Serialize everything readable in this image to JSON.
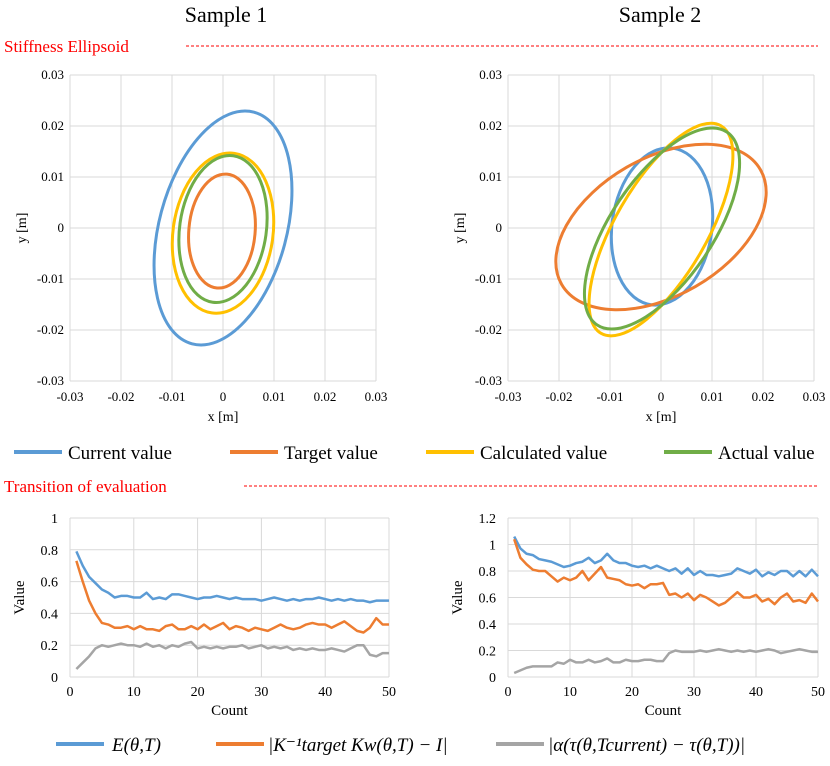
{
  "headers": {
    "sample1": "Sample 1",
    "sample2": "Sample 2"
  },
  "sections": {
    "ellipsoid": "Stiffness Ellipsoid",
    "transition": "Transition of evaluation"
  },
  "colors": {
    "blue": "#5b9bd5",
    "orange": "#ed7d31",
    "yellow": "#ffc000",
    "green": "#70ad47",
    "gray": "#a5a5a5",
    "red": "#ff0000",
    "grid": "#d9d9d9"
  },
  "legend_ellipse": [
    {
      "label": "Current value",
      "color": "#5b9bd5"
    },
    {
      "label": "Target value",
      "color": "#ed7d31"
    },
    {
      "label": "Calculated value",
      "color": "#ffc000"
    },
    {
      "label": "Actual value",
      "color": "#70ad47"
    }
  ],
  "legend_eval": [
    {
      "label": "E(θ,T)",
      "color": "#5b9bd5"
    },
    {
      "label": "|K⁻¹target Kw(θ,T) − I|",
      "color": "#ed7d31"
    },
    {
      "label": "|α(τ(θ,Tcurrent) − τ(θ,T))|",
      "color": "#a5a5a5"
    }
  ],
  "chart_data": [
    {
      "id": "ellipse1",
      "type": "scatter",
      "title": "Sample 1",
      "xlabel": "x [m]",
      "ylabel": "y [m]",
      "xlim": [
        -0.03,
        0.03
      ],
      "ylim": [
        -0.03,
        0.03
      ],
      "ticks": [
        -0.03,
        -0.02,
        -0.01,
        0,
        0.01,
        0.02,
        0.03
      ],
      "tick_labels": [
        "-0.03",
        "-0.02",
        "-0.01",
        "0",
        "0.01",
        "0.02",
        "0.03"
      ],
      "series": [
        {
          "name": "Current value",
          "color": "#5b9bd5",
          "ellipse": {
            "cx": 0.0,
            "cy": 0.0,
            "a": 0.0235,
            "b": 0.0125,
            "angle_deg": 75
          }
        },
        {
          "name": "Calculated value",
          "color": "#ffc000",
          "ellipse": {
            "cx": 0.0,
            "cy": -0.001,
            "a": 0.0158,
            "b": 0.0098,
            "angle_deg": 82
          }
        },
        {
          "name": "Actual value",
          "color": "#70ad47",
          "ellipse": {
            "cx": 0.0,
            "cy": -0.0002,
            "a": 0.0145,
            "b": 0.0085,
            "angle_deg": 82
          }
        },
        {
          "name": "Target value",
          "color": "#ed7d31",
          "ellipse": {
            "cx": -0.0002,
            "cy": -0.0006,
            "a": 0.0112,
            "b": 0.0065,
            "angle_deg": 85
          }
        }
      ]
    },
    {
      "id": "ellipse2",
      "type": "scatter",
      "title": "Sample 2",
      "xlabel": "x [m]",
      "ylabel": "y [m]",
      "xlim": [
        -0.03,
        0.03
      ],
      "ylim": [
        -0.03,
        0.03
      ],
      "ticks": [
        -0.03,
        -0.02,
        -0.01,
        0,
        0.01,
        0.02,
        0.03
      ],
      "tick_labels": [
        "-0.03",
        "-0.02",
        "-0.01",
        "0",
        "0.01",
        "0.02",
        "0.03"
      ],
      "series": [
        {
          "name": "Current value",
          "color": "#5b9bd5",
          "ellipse": {
            "cx": 0.0002,
            "cy": 0.0003,
            "a": 0.0155,
            "b": 0.0098,
            "angle_deg": 82
          }
        },
        {
          "name": "Target value",
          "color": "#ed7d31",
          "ellipse": {
            "cx": 0.0,
            "cy": 0.0002,
            "a": 0.0225,
            "b": 0.0135,
            "angle_deg": 30
          }
        },
        {
          "name": "Calculated value",
          "color": "#ffc000",
          "ellipse": {
            "cx": 0.0,
            "cy": -0.0003,
            "a": 0.0235,
            "b": 0.009,
            "angle_deg": 60
          }
        },
        {
          "name": "Actual value",
          "color": "#70ad47",
          "ellipse": {
            "cx": 0.0002,
            "cy": -0.0001,
            "a": 0.0228,
            "b": 0.01,
            "angle_deg": 56
          }
        }
      ]
    },
    {
      "id": "eval1",
      "type": "line",
      "xlabel": "Count",
      "ylabel": "Value",
      "xlim": [
        0,
        50
      ],
      "ylim": [
        0,
        1
      ],
      "xticks": [
        0,
        10,
        20,
        30,
        40,
        50
      ],
      "xtick_labels": [
        "0",
        "10",
        "20",
        "30",
        "40",
        "50"
      ],
      "yticks": [
        0,
        0.2,
        0.4,
        0.6,
        0.8,
        1
      ],
      "ytick_labels": [
        "0",
        "0.2",
        "0.4",
        "0.6",
        "0.8",
        "1"
      ],
      "x": [
        1,
        2,
        3,
        4,
        5,
        6,
        7,
        8,
        9,
        10,
        11,
        12,
        13,
        14,
        15,
        16,
        17,
        18,
        19,
        20,
        21,
        22,
        23,
        24,
        25,
        26,
        27,
        28,
        29,
        30,
        31,
        32,
        33,
        34,
        35,
        36,
        37,
        38,
        39,
        40,
        41,
        42,
        43,
        44,
        45,
        46,
        47,
        48,
        49,
        50
      ],
      "series": [
        {
          "name": "E(θ,T)",
          "color": "#5b9bd5",
          "values": [
            0.79,
            0.7,
            0.63,
            0.59,
            0.55,
            0.53,
            0.5,
            0.51,
            0.51,
            0.5,
            0.5,
            0.53,
            0.49,
            0.5,
            0.49,
            0.52,
            0.52,
            0.51,
            0.5,
            0.49,
            0.5,
            0.5,
            0.51,
            0.5,
            0.49,
            0.5,
            0.49,
            0.49,
            0.49,
            0.48,
            0.49,
            0.5,
            0.49,
            0.48,
            0.49,
            0.48,
            0.49,
            0.49,
            0.5,
            0.49,
            0.48,
            0.49,
            0.48,
            0.49,
            0.48,
            0.48,
            0.47,
            0.48,
            0.48,
            0.48
          ]
        },
        {
          "name": "|K⁻¹target Kw(θ,T) − I|",
          "color": "#ed7d31",
          "values": [
            0.73,
            0.6,
            0.48,
            0.4,
            0.34,
            0.33,
            0.31,
            0.31,
            0.32,
            0.3,
            0.32,
            0.3,
            0.3,
            0.29,
            0.32,
            0.33,
            0.3,
            0.3,
            0.32,
            0.3,
            0.33,
            0.3,
            0.32,
            0.34,
            0.3,
            0.32,
            0.31,
            0.29,
            0.31,
            0.3,
            0.29,
            0.31,
            0.33,
            0.31,
            0.3,
            0.31,
            0.33,
            0.34,
            0.33,
            0.33,
            0.31,
            0.33,
            0.35,
            0.32,
            0.29,
            0.28,
            0.31,
            0.37,
            0.33,
            0.33
          ]
        },
        {
          "name": "|α(τ(θ,Tcurrent) − τ(θ,T))|",
          "color": "#a5a5a5",
          "values": [
            0.05,
            0.09,
            0.13,
            0.18,
            0.2,
            0.19,
            0.2,
            0.21,
            0.2,
            0.2,
            0.19,
            0.21,
            0.19,
            0.2,
            0.18,
            0.2,
            0.19,
            0.21,
            0.22,
            0.18,
            0.19,
            0.18,
            0.19,
            0.18,
            0.19,
            0.19,
            0.2,
            0.18,
            0.19,
            0.2,
            0.18,
            0.19,
            0.18,
            0.19,
            0.17,
            0.18,
            0.17,
            0.18,
            0.17,
            0.17,
            0.18,
            0.17,
            0.16,
            0.18,
            0.2,
            0.2,
            0.14,
            0.13,
            0.15,
            0.15
          ]
        }
      ]
    },
    {
      "id": "eval2",
      "type": "line",
      "xlabel": "Count",
      "ylabel": "Value",
      "xlim": [
        0,
        50
      ],
      "ylim": [
        0,
        1.2
      ],
      "xticks": [
        0,
        10,
        20,
        30,
        40,
        50
      ],
      "xtick_labels": [
        "0",
        "10",
        "20",
        "30",
        "40",
        "50"
      ],
      "yticks": [
        0,
        0.2,
        0.4,
        0.6,
        0.8,
        1,
        1.2
      ],
      "ytick_labels": [
        "0",
        "0.2",
        "0.4",
        "0.6",
        "0.8",
        "1",
        "1.2"
      ],
      "x": [
        1,
        2,
        3,
        4,
        5,
        6,
        7,
        8,
        9,
        10,
        11,
        12,
        13,
        14,
        15,
        16,
        17,
        18,
        19,
        20,
        21,
        22,
        23,
        24,
        25,
        26,
        27,
        28,
        29,
        30,
        31,
        32,
        33,
        34,
        35,
        36,
        37,
        38,
        39,
        40,
        41,
        42,
        43,
        44,
        45,
        46,
        47,
        48,
        49,
        50
      ],
      "series": [
        {
          "name": "E(θ,T)",
          "color": "#5b9bd5",
          "values": [
            1.06,
            0.97,
            0.93,
            0.92,
            0.89,
            0.88,
            0.87,
            0.85,
            0.83,
            0.84,
            0.86,
            0.87,
            0.9,
            0.86,
            0.88,
            0.93,
            0.88,
            0.86,
            0.86,
            0.84,
            0.83,
            0.84,
            0.82,
            0.84,
            0.82,
            0.8,
            0.82,
            0.78,
            0.82,
            0.77,
            0.8,
            0.77,
            0.77,
            0.76,
            0.77,
            0.78,
            0.82,
            0.8,
            0.78,
            0.81,
            0.76,
            0.79,
            0.77,
            0.8,
            0.8,
            0.76,
            0.8,
            0.76,
            0.81,
            0.76
          ]
        },
        {
          "name": "|K⁻¹target Kw(θ,T) − I|",
          "color": "#ed7d31",
          "values": [
            1.04,
            0.9,
            0.85,
            0.81,
            0.8,
            0.8,
            0.76,
            0.72,
            0.75,
            0.73,
            0.75,
            0.8,
            0.73,
            0.78,
            0.83,
            0.75,
            0.74,
            0.73,
            0.7,
            0.69,
            0.7,
            0.67,
            0.7,
            0.7,
            0.71,
            0.62,
            0.63,
            0.6,
            0.63,
            0.58,
            0.62,
            0.6,
            0.57,
            0.54,
            0.56,
            0.6,
            0.64,
            0.6,
            0.6,
            0.62,
            0.57,
            0.59,
            0.55,
            0.6,
            0.63,
            0.57,
            0.58,
            0.56,
            0.63,
            0.57
          ]
        },
        {
          "name": "|α(τ(θ,Tcurrent) − τ(θ,T))|",
          "color": "#a5a5a5",
          "values": [
            0.03,
            0.05,
            0.07,
            0.08,
            0.08,
            0.08,
            0.08,
            0.11,
            0.1,
            0.13,
            0.11,
            0.11,
            0.13,
            0.11,
            0.12,
            0.14,
            0.11,
            0.11,
            0.13,
            0.12,
            0.12,
            0.13,
            0.13,
            0.12,
            0.12,
            0.18,
            0.2,
            0.19,
            0.19,
            0.19,
            0.2,
            0.19,
            0.2,
            0.21,
            0.2,
            0.19,
            0.2,
            0.19,
            0.2,
            0.19,
            0.2,
            0.21,
            0.2,
            0.18,
            0.19,
            0.2,
            0.21,
            0.2,
            0.19,
            0.19
          ]
        }
      ]
    }
  ]
}
